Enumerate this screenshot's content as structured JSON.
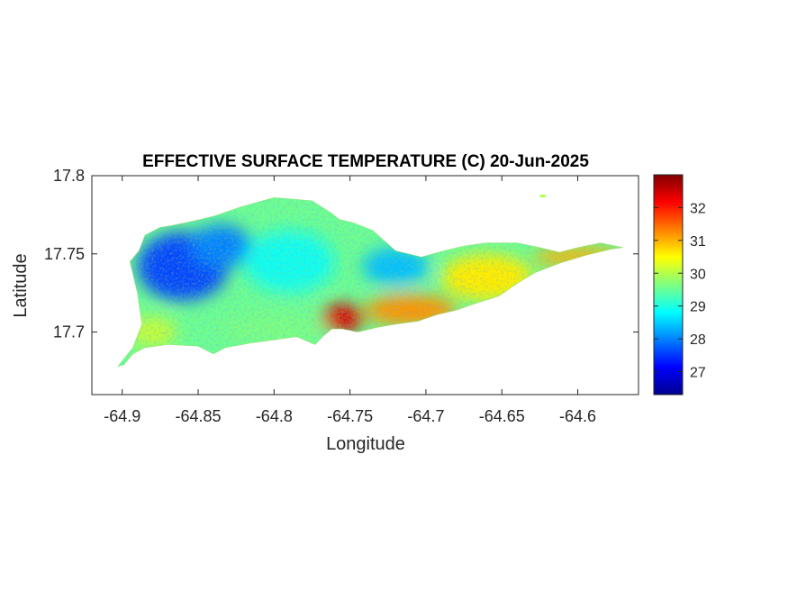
{
  "chart_data": {
    "type": "heatmap",
    "title": "EFFECTIVE SURFACE TEMPERATURE (C) 20-Jun-2025",
    "xlabel": "Longitude",
    "ylabel": "Latitude",
    "xlim": [
      -64.92,
      -64.56
    ],
    "ylim": [
      17.66,
      17.8
    ],
    "x_ticks": [
      -64.9,
      -64.85,
      -64.8,
      -64.75,
      -64.7,
      -64.65,
      -64.6
    ],
    "x_tick_labels": [
      "-64.9",
      "-64.85",
      "-64.8",
      "-64.75",
      "-64.7",
      "-64.65",
      "-64.6"
    ],
    "y_ticks": [
      17.7,
      17.75,
      17.8
    ],
    "y_tick_labels": [
      "17.7",
      "17.75",
      "17.8"
    ],
    "colorbar": {
      "colormap": "jet",
      "clim": [
        26.3,
        33
      ],
      "ticks": [
        27,
        28,
        29,
        30,
        31,
        32
      ],
      "tick_labels": [
        "27",
        "28",
        "29",
        "30",
        "31",
        "32"
      ]
    },
    "grid": false,
    "region": {
      "outline_lonlat": [
        [
          -64.899,
          17.679
        ],
        [
          -64.893,
          17.686
        ],
        [
          -64.885,
          17.69
        ],
        [
          -64.87,
          17.692
        ],
        [
          -64.85,
          17.691
        ],
        [
          -64.84,
          17.686
        ],
        [
          -64.832,
          17.69
        ],
        [
          -64.815,
          17.693
        ],
        [
          -64.8,
          17.695
        ],
        [
          -64.785,
          17.697
        ],
        [
          -64.773,
          17.692
        ],
        [
          -64.768,
          17.697
        ],
        [
          -64.762,
          17.702
        ],
        [
          -64.755,
          17.702
        ],
        [
          -64.745,
          17.7
        ],
        [
          -64.732,
          17.703
        ],
        [
          -64.72,
          17.705
        ],
        [
          -64.705,
          17.707
        ],
        [
          -64.693,
          17.711
        ],
        [
          -64.68,
          17.714
        ],
        [
          -64.665,
          17.719
        ],
        [
          -64.652,
          17.723
        ],
        [
          -64.64,
          17.731
        ],
        [
          -64.628,
          17.738
        ],
        [
          -64.612,
          17.744
        ],
        [
          -64.595,
          17.749
        ],
        [
          -64.578,
          17.753
        ],
        [
          -64.57,
          17.754
        ],
        [
          -64.585,
          17.757
        ],
        [
          -64.6,
          17.754
        ],
        [
          -64.612,
          17.751
        ],
        [
          -64.625,
          17.754
        ],
        [
          -64.64,
          17.757
        ],
        [
          -64.66,
          17.757
        ],
        [
          -64.675,
          17.755
        ],
        [
          -64.688,
          17.752
        ],
        [
          -64.703,
          17.748
        ],
        [
          -64.72,
          17.752
        ],
        [
          -64.735,
          17.765
        ],
        [
          -64.748,
          17.77
        ],
        [
          -64.757,
          17.772
        ],
        [
          -64.762,
          17.776
        ],
        [
          -64.775,
          17.784
        ],
        [
          -64.8,
          17.786
        ],
        [
          -64.822,
          17.78
        ],
        [
          -64.84,
          17.774
        ],
        [
          -64.853,
          17.771
        ],
        [
          -64.868,
          17.768
        ],
        [
          -64.875,
          17.767
        ],
        [
          -64.885,
          17.762
        ],
        [
          -64.889,
          17.752
        ],
        [
          -64.895,
          17.745
        ],
        [
          -64.89,
          17.725
        ],
        [
          -64.887,
          17.705
        ],
        [
          -64.893,
          17.69
        ],
        [
          -64.903,
          17.678
        ]
      ],
      "temperature_zones": [
        {
          "lon": -64.86,
          "lat": 17.742,
          "rx": 0.03,
          "ry": 0.022,
          "value": 27.6
        },
        {
          "lon": -64.835,
          "lat": 17.755,
          "rx": 0.02,
          "ry": 0.014,
          "value": 28.0
        },
        {
          "lon": -64.79,
          "lat": 17.745,
          "rx": 0.03,
          "ry": 0.02,
          "value": 28.9
        },
        {
          "lon": -64.72,
          "lat": 17.742,
          "rx": 0.022,
          "ry": 0.012,
          "value": 28.4
        },
        {
          "lon": -64.88,
          "lat": 17.7,
          "rx": 0.016,
          "ry": 0.01,
          "value": 30.1
        },
        {
          "lon": -64.8,
          "lat": 17.702,
          "rx": 0.035,
          "ry": 0.01,
          "value": 29.6
        },
        {
          "lon": -64.755,
          "lat": 17.709,
          "rx": 0.014,
          "ry": 0.009,
          "value": 32.4
        },
        {
          "lon": -64.71,
          "lat": 17.714,
          "rx": 0.03,
          "ry": 0.01,
          "value": 31.2
        },
        {
          "lon": -64.66,
          "lat": 17.735,
          "rx": 0.03,
          "ry": 0.015,
          "value": 30.6
        },
        {
          "lon": -64.6,
          "lat": 17.748,
          "rx": 0.03,
          "ry": 0.006,
          "value": 31.0
        }
      ],
      "islet": {
        "lon": -64.623,
        "lat": 17.787,
        "value": 30.0
      }
    }
  }
}
